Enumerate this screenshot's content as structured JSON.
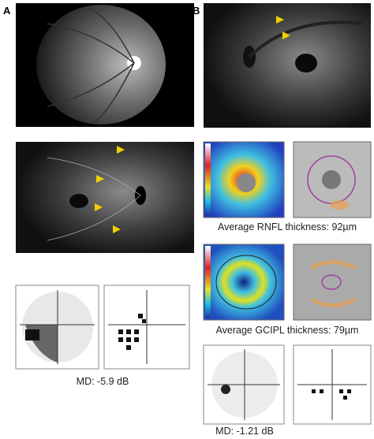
{
  "panel_a": {
    "label": "A",
    "vf_caption": "MD: -5.9 dB"
  },
  "panel_b": {
    "label": "B",
    "rnfl_caption": "Average RNFL thickness: 92µm",
    "gcipl_caption": "Average GCIPL thickness: 79µm",
    "vf_caption": "MD: -1.21 dB"
  }
}
